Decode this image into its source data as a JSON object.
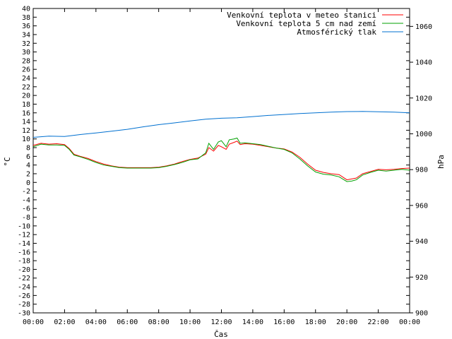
{
  "chart_data": {
    "type": "line",
    "title": "",
    "xlabel": "Čas",
    "ylabel_left": "°C",
    "ylabel_right": "hPa",
    "xlim_hours": [
      0,
      24
    ],
    "ylim_left": [
      -30,
      40
    ],
    "ylim_right": [
      900,
      1070
    ],
    "grid": false,
    "legend_position": "top-right",
    "x_ticks": [
      "00:00",
      "02:00",
      "04:00",
      "06:00",
      "08:00",
      "10:00",
      "12:00",
      "14:00",
      "16:00",
      "18:00",
      "20:00",
      "22:00",
      "00:00"
    ],
    "y_left_ticks": [
      40,
      38,
      36,
      34,
      32,
      30,
      28,
      26,
      24,
      22,
      20,
      18,
      16,
      14,
      12,
      10,
      8,
      6,
      4,
      2,
      0,
      -2,
      -4,
      -6,
      -8,
      -10,
      -12,
      -14,
      -16,
      -18,
      -20,
      -22,
      -24,
      -26,
      -28,
      -30
    ],
    "y_right_ticks": [
      1060,
      1040,
      1020,
      1000,
      980,
      960,
      940,
      920,
      900
    ],
    "series": [
      {
        "name": "Venkovní teplota v meteo stanici",
        "axis": "left",
        "color": "#ff0000",
        "x": [
          0,
          0.5,
          1,
          1.5,
          2,
          2.3,
          2.6,
          3,
          3.5,
          4,
          4.5,
          5,
          5.5,
          6,
          6.5,
          7,
          7.5,
          8,
          8.5,
          9,
          9.5,
          10,
          10.5,
          11,
          11.2,
          11.5,
          11.8,
          12,
          12.3,
          12.5,
          12.8,
          13,
          13.2,
          13.5,
          14,
          14.5,
          15,
          15.5,
          16,
          16.5,
          17,
          17.5,
          18,
          18.5,
          19,
          19.5,
          20,
          20.3,
          20.6,
          21,
          21.5,
          22,
          22.5,
          23,
          23.5,
          24
        ],
        "y": [
          8.5,
          9.0,
          8.8,
          8.9,
          8.7,
          7.8,
          6.5,
          6.0,
          5.5,
          4.8,
          4.2,
          3.8,
          3.5,
          3.4,
          3.4,
          3.4,
          3.4,
          3.5,
          3.8,
          4.2,
          4.8,
          5.3,
          5.6,
          6.5,
          8.0,
          7.2,
          8.5,
          8.2,
          7.6,
          8.8,
          9.2,
          9.5,
          8.7,
          8.9,
          8.8,
          8.5,
          8.2,
          7.9,
          7.7,
          7.0,
          5.8,
          4.2,
          2.8,
          2.3,
          2.0,
          1.8,
          0.6,
          0.8,
          1.0,
          2.0,
          2.5,
          3.0,
          2.9,
          3.0,
          3.2,
          3.3
        ]
      },
      {
        "name": "Venkovní teplota 5 cm nad zemí",
        "axis": "left",
        "color": "#00a000",
        "x": [
          0,
          0.5,
          1,
          1.5,
          2,
          2.3,
          2.6,
          3,
          3.5,
          4,
          4.5,
          5,
          5.5,
          6,
          6.5,
          7,
          7.5,
          8,
          8.5,
          9,
          9.5,
          10,
          10.5,
          11,
          11.2,
          11.5,
          11.8,
          12,
          12.3,
          12.5,
          12.8,
          13,
          13.2,
          13.5,
          14,
          14.5,
          15,
          15.5,
          16,
          16.5,
          17,
          17.5,
          18,
          18.5,
          19,
          19.5,
          20,
          20.3,
          20.6,
          21,
          21.5,
          22,
          22.5,
          23,
          23.5,
          24
        ],
        "y": [
          8.2,
          8.8,
          8.6,
          8.6,
          8.5,
          7.6,
          6.3,
          5.9,
          5.3,
          4.6,
          4.0,
          3.7,
          3.4,
          3.3,
          3.3,
          3.3,
          3.3,
          3.4,
          3.7,
          4.1,
          4.6,
          5.2,
          5.4,
          6.8,
          9.0,
          7.6,
          9.3,
          9.6,
          8.2,
          9.8,
          10.0,
          10.2,
          9.0,
          9.1,
          8.9,
          8.7,
          8.3,
          7.9,
          7.6,
          6.8,
          5.4,
          3.8,
          2.4,
          1.9,
          1.7,
          1.3,
          0.2,
          0.3,
          0.6,
          1.7,
          2.3,
          2.8,
          2.6,
          2.8,
          3.0,
          2.8
        ]
      },
      {
        "name": "Atmosférický tlak",
        "axis": "right",
        "color": "#0070d0",
        "x": [
          0,
          1,
          2,
          3,
          4,
          5,
          6,
          7,
          8,
          9,
          10,
          11,
          12,
          13,
          14,
          15,
          16,
          17,
          18,
          19,
          20,
          21,
          22,
          23,
          24
        ],
        "y": [
          998,
          998.7,
          998.5,
          999.6,
          1000.5,
          1001.5,
          1002.5,
          1003.9,
          1005.1,
          1006.1,
          1007.2,
          1008.2,
          1008.7,
          1009.0,
          1009.6,
          1010.3,
          1010.8,
          1011.3,
          1011.7,
          1012.1,
          1012.4,
          1012.5,
          1012.3,
          1012.1,
          1011.7
        ]
      }
    ]
  }
}
